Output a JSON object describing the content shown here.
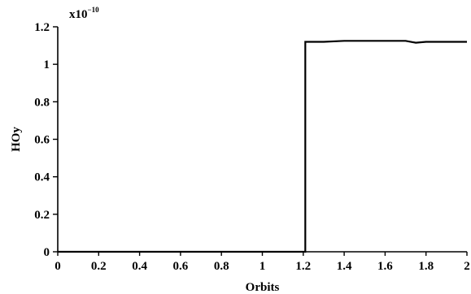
{
  "chart_data": {
    "type": "line",
    "title": "",
    "xlabel": "Orbits",
    "ylabel": "HOy",
    "scale_multiplier": "x10",
    "scale_exponent": "−10",
    "xlim": [
      0,
      2
    ],
    "ylim": [
      0,
      1.2
    ],
    "x_ticks": [
      "0",
      "0.2",
      "0.4",
      "0.6",
      "0.8",
      "1",
      "1.2",
      "1.4",
      "1.6",
      "1.8",
      "2"
    ],
    "y_ticks": [
      "0",
      "0.2",
      "0.4",
      "0.6",
      "0.8",
      "1",
      "1.2"
    ],
    "grid": false,
    "legend": "none",
    "series": [
      {
        "x": [
          0,
          1.21,
          1.21,
          1.3,
          1.4,
          1.5,
          1.6,
          1.7,
          1.75,
          1.8,
          1.9,
          2.0
        ],
        "y": [
          0,
          0,
          1.12,
          1.12,
          1.125,
          1.125,
          1.125,
          1.125,
          1.115,
          1.12,
          1.12,
          1.12
        ]
      }
    ]
  }
}
